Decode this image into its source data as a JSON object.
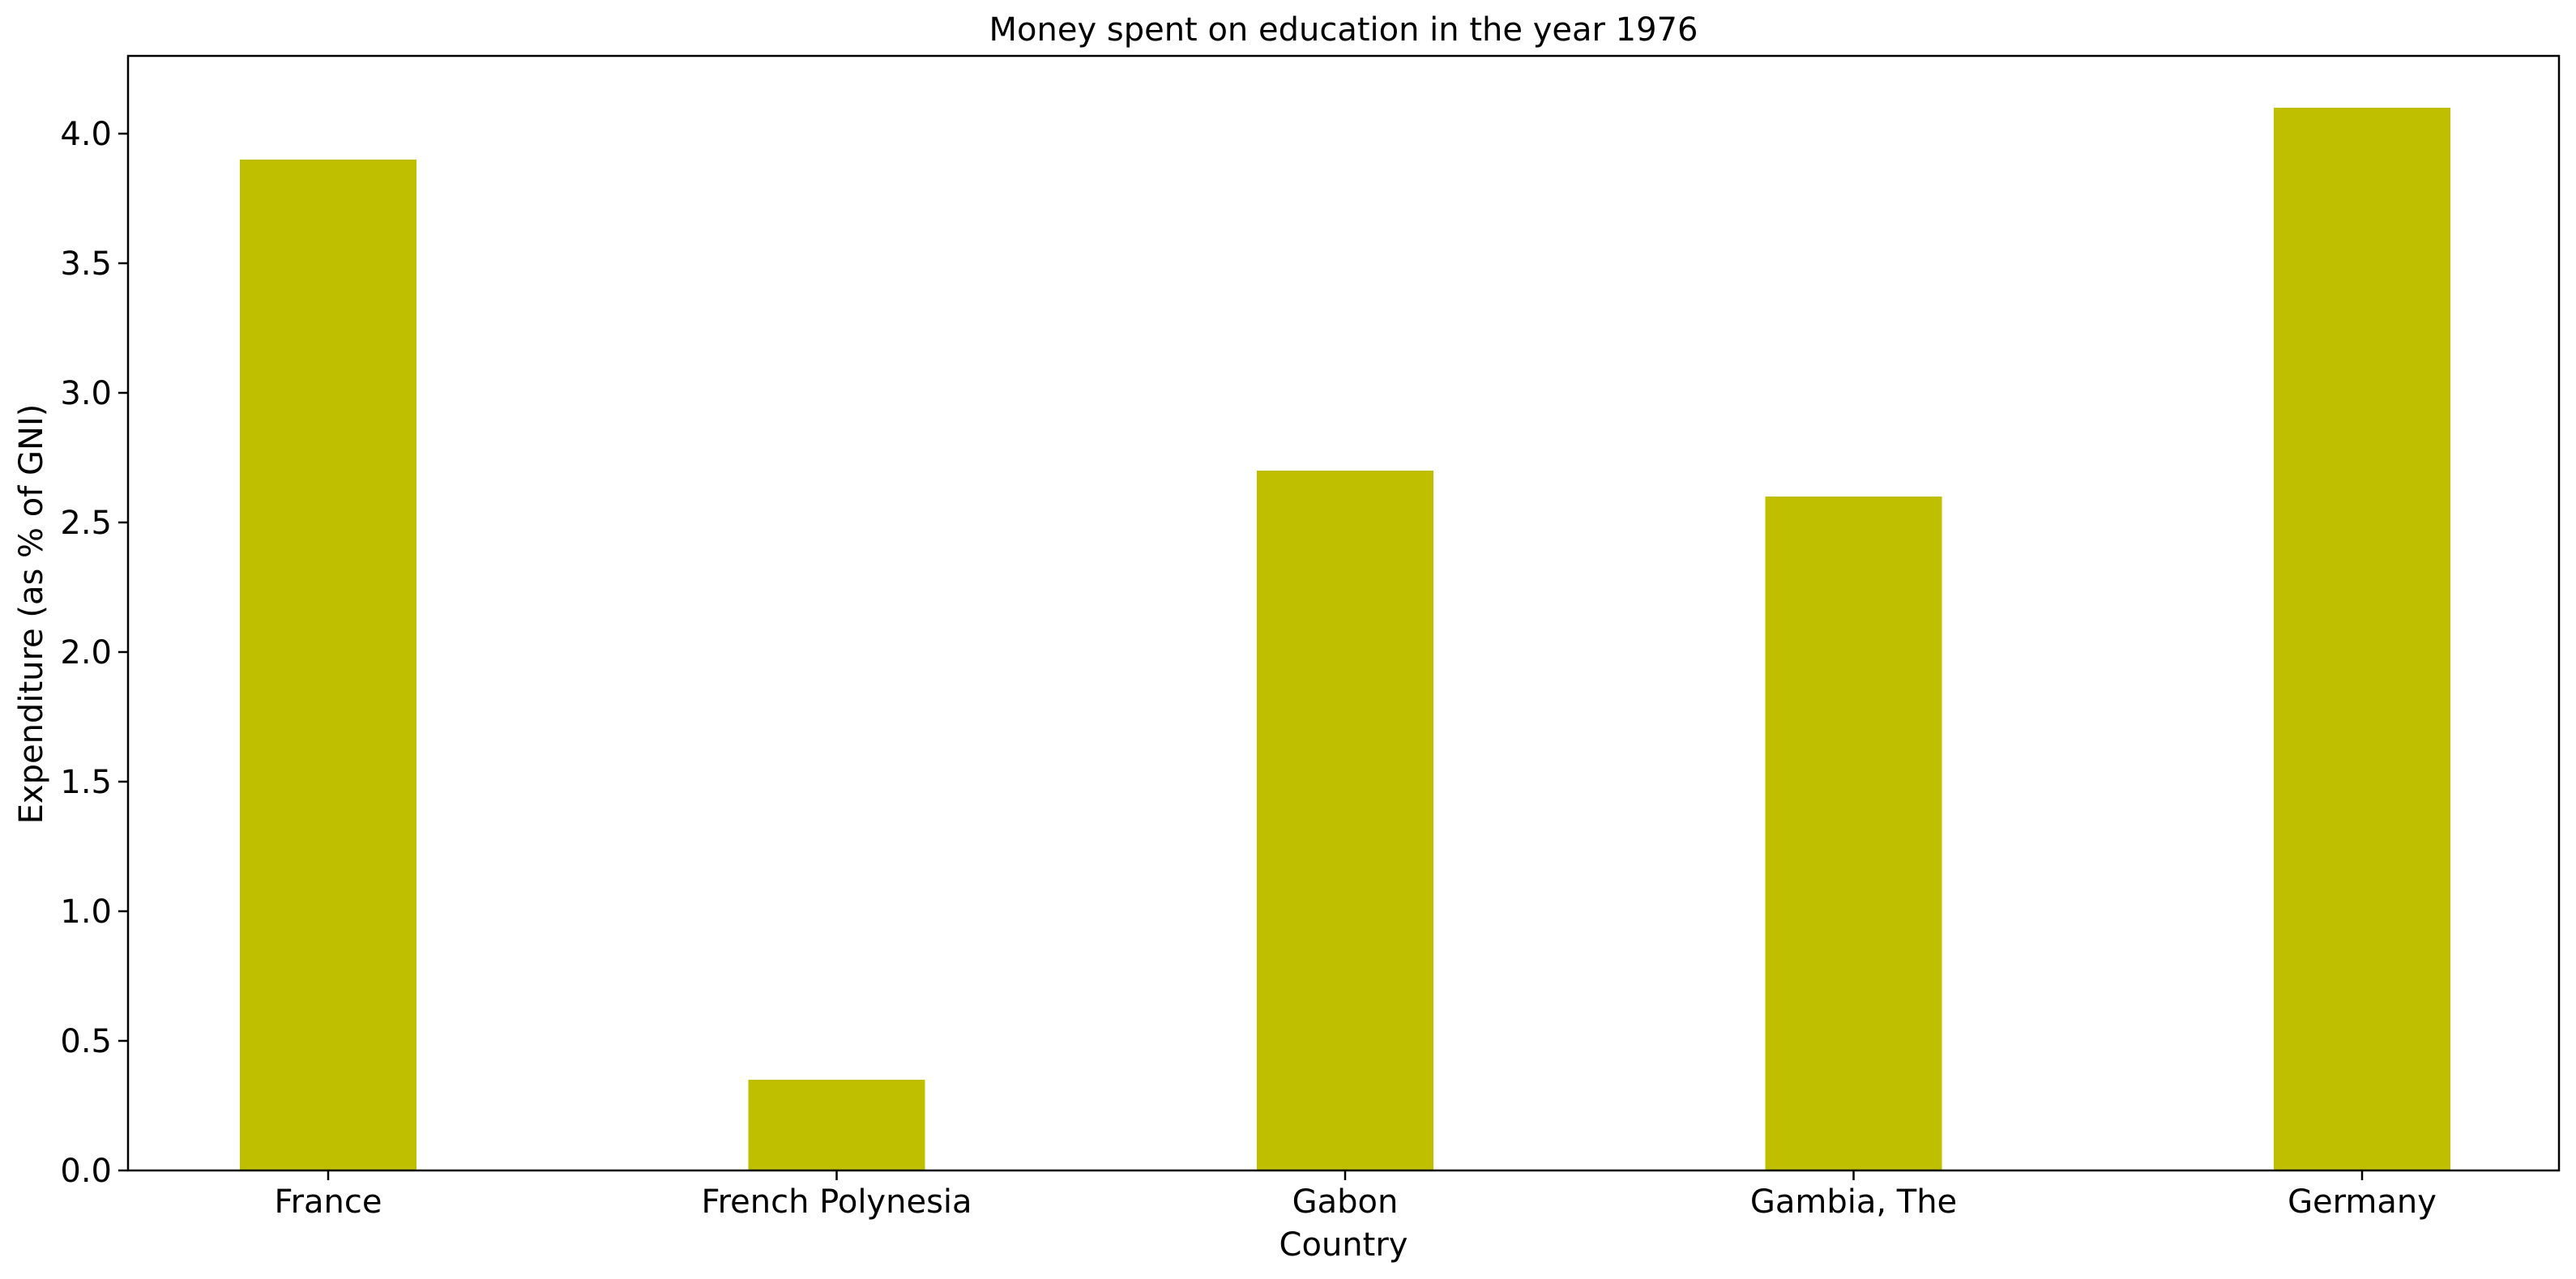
{
  "chart_data": {
    "type": "bar",
    "title": "Money spent on education in the year 1976",
    "xlabel": "Country",
    "ylabel": "Expenditure (as % of GNI)",
    "categories": [
      "France",
      "French Polynesia",
      "Gabon",
      "Gambia, The",
      "Germany"
    ],
    "values": [
      3.9,
      0.35,
      2.7,
      2.6,
      4.1
    ],
    "ylim": [
      0,
      4.3
    ],
    "yticks": [
      0.0,
      0.5,
      1.0,
      1.5,
      2.0,
      2.5,
      3.0,
      3.5,
      4.0
    ],
    "ytick_labels": [
      "0.0",
      "0.5",
      "1.0",
      "1.5",
      "2.0",
      "2.5",
      "3.0",
      "3.5",
      "4.0"
    ],
    "bar_color": "#bfbf00",
    "grid": false,
    "legend": "none"
  }
}
